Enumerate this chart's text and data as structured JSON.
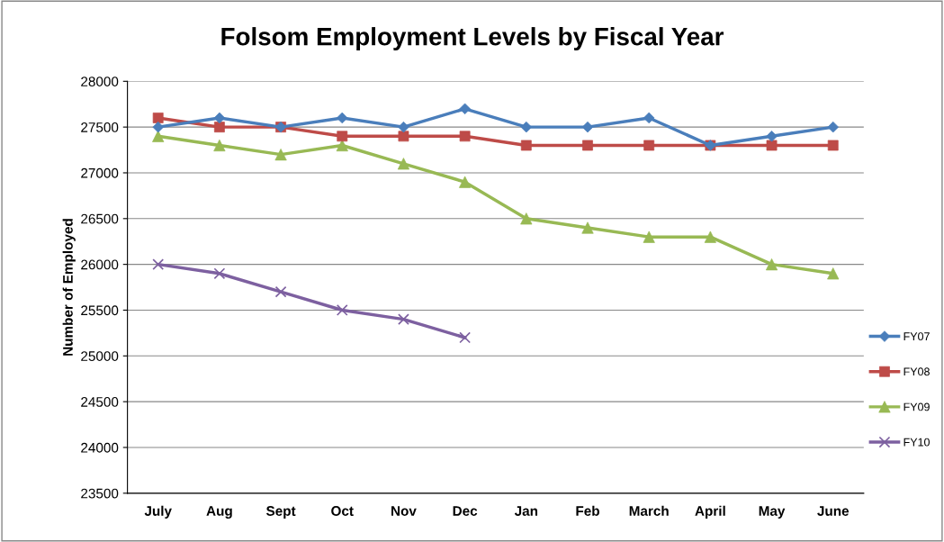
{
  "chart_data": {
    "type": "line",
    "title": "Folsom Employment Levels by Fiscal Year",
    "ylabel": "Number of Employed",
    "categories": [
      "July",
      "Aug",
      "Sept",
      "Oct",
      "Nov",
      "Dec",
      "Jan",
      "Feb",
      "March",
      "April",
      "May",
      "June"
    ],
    "series": [
      {
        "name": "FY07",
        "color": "#4a7ebb",
        "marker": "diamond",
        "values": [
          27500,
          27600,
          27500,
          27600,
          27500,
          27700,
          27500,
          27500,
          27600,
          27300,
          27400,
          27500
        ]
      },
      {
        "name": "FY08",
        "color": "#be4b48",
        "marker": "square",
        "values": [
          27600,
          27500,
          27500,
          27400,
          27400,
          27400,
          27300,
          27300,
          27300,
          27300,
          27300,
          27300
        ]
      },
      {
        "name": "FY09",
        "color": "#98b954",
        "marker": "triangle",
        "values": [
          27400,
          27300,
          27200,
          27300,
          27100,
          26900,
          26500,
          26400,
          26300,
          26300,
          26000,
          25900
        ]
      },
      {
        "name": "FY10",
        "color": "#7d60a0",
        "marker": "cross",
        "values": [
          26000,
          25900,
          25700,
          25500,
          25400,
          25200,
          null,
          null,
          null,
          null,
          null,
          null
        ]
      }
    ],
    "ylim": [
      23500,
      28000
    ],
    "yticks": [
      23500,
      24000,
      24500,
      25000,
      25500,
      26000,
      26500,
      27000,
      27500,
      28000
    ],
    "grid": "y",
    "legend": "right",
    "line_style": "solid"
  }
}
